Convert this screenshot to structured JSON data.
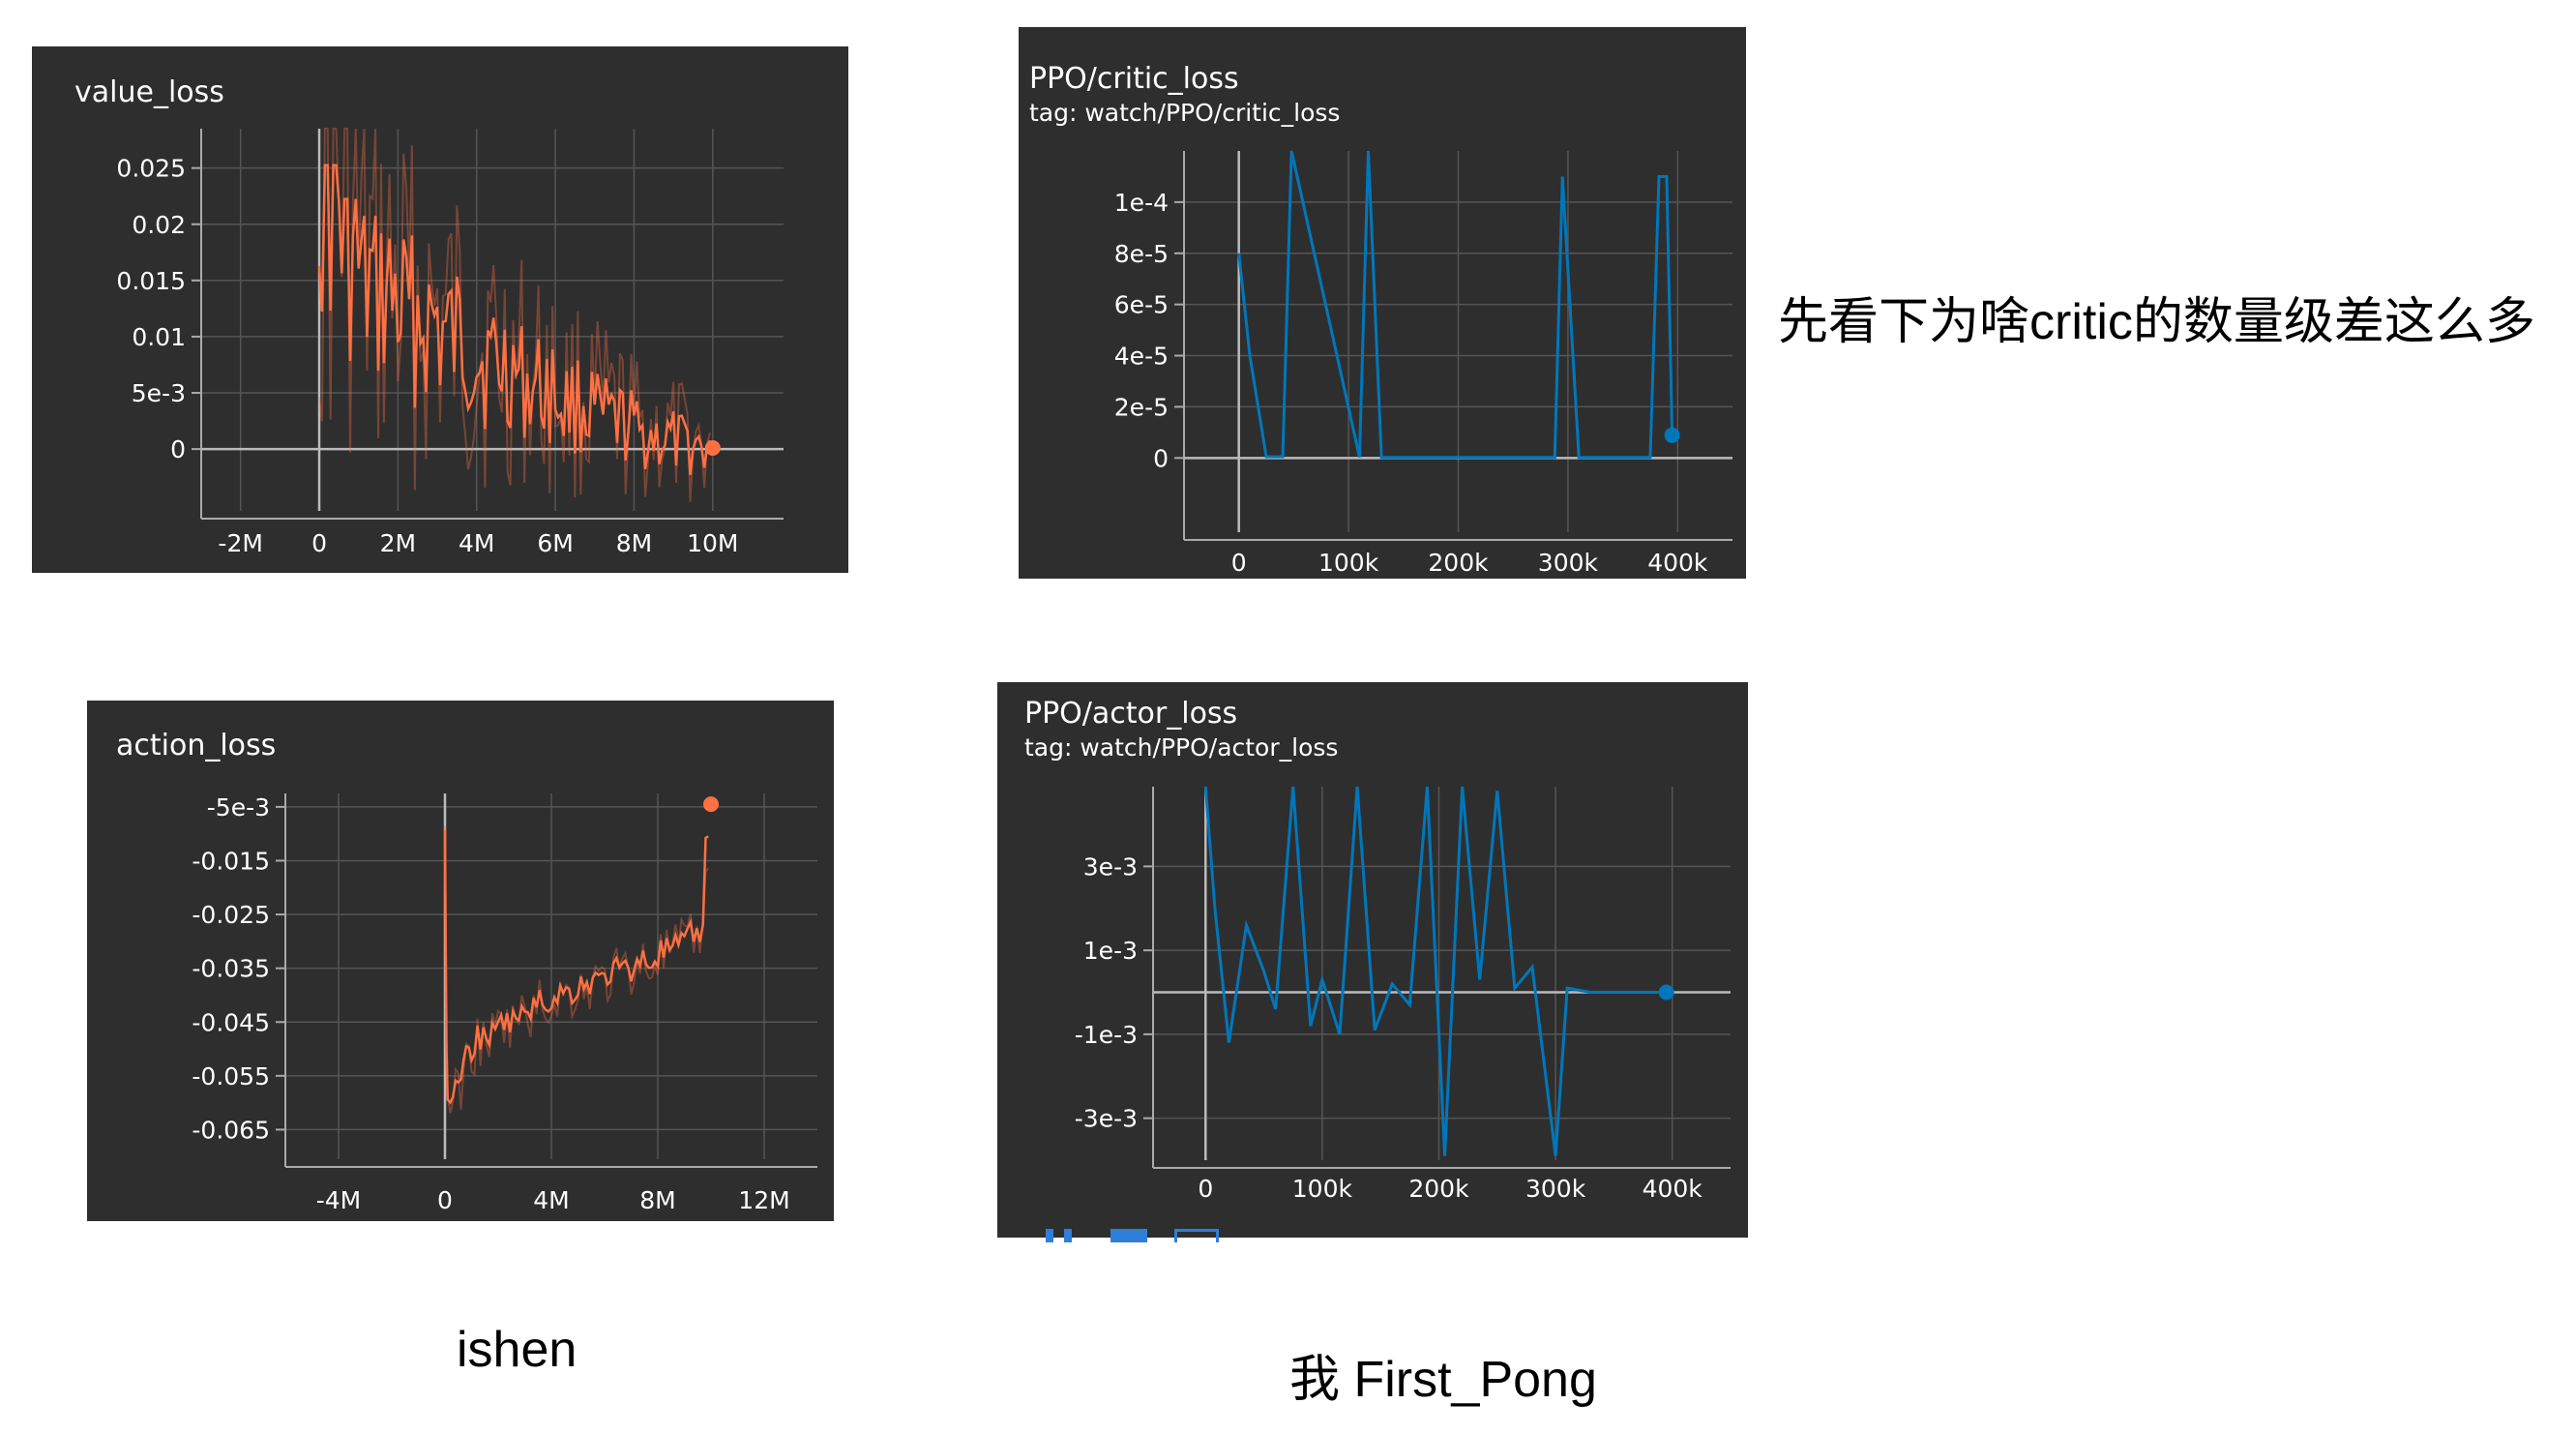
{
  "annotations": {
    "question": "先看下为啥critic的数量级差这么多",
    "left_author": "ishen",
    "right_author": "我 First_Pong"
  },
  "colors": {
    "panel_bg": "#2e2e2e",
    "orange": "#ff7043",
    "blue": "#0077bb",
    "grid": "#555555",
    "axis": "#aaaaaa"
  },
  "charts": {
    "value_loss": {
      "title": "value_loss"
    },
    "critic": {
      "title": "PPO/critic_loss",
      "tag": "tag: watch/PPO/critic_loss"
    },
    "action_loss": {
      "title": "action_loss"
    },
    "actor": {
      "title": "PPO/actor_loss",
      "tag": "tag: watch/PPO/actor_loss"
    }
  },
  "chart_data": [
    {
      "type": "line",
      "title": "value_loss",
      "xlim": [
        -3000000,
        11800000
      ],
      "ylim": [
        -0.0055,
        0.0285
      ],
      "x_ticks": [
        -2000000,
        0,
        2000000,
        4000000,
        6000000,
        8000000,
        10000000
      ],
      "x_tick_labels": [
        "-2M",
        "0",
        "2M",
        "4M",
        "6M",
        "8M",
        "10M"
      ],
      "y_ticks": [
        0.025,
        0.02,
        0.015,
        0.01,
        0.005,
        0
      ],
      "y_tick_labels": [
        "0.025",
        "0.02",
        "0.015",
        "0.01",
        "5e-3",
        "0"
      ],
      "series": [
        {
          "x": [
            0,
            500000,
            1000000,
            2000000,
            3000000,
            4000000,
            5000000,
            6000000,
            7000000,
            8000000,
            9000000,
            10000000
          ],
          "values": [
            0.028,
            0.022,
            0.016,
            0.013,
            0.011,
            0.009,
            0.007,
            0.005,
            0.0035,
            0.002,
            0.0007,
            0.0001
          ]
        }
      ],
      "grid": true
    },
    {
      "type": "line",
      "title": "PPO/critic_loss",
      "xlim": [
        -50000,
        450000
      ],
      "ylim": [
        -2.9e-05,
        0.00012
      ],
      "x_ticks": [
        0,
        100000,
        200000,
        300000,
        400000
      ],
      "x_tick_labels": [
        "0",
        "100k",
        "200k",
        "300k",
        "400k"
      ],
      "y_ticks": [
        0.0001,
        8e-05,
        6e-05,
        4e-05,
        2e-05,
        0
      ],
      "y_tick_labels": [
        "1e-4",
        "8e-5",
        "6e-5",
        "4e-5",
        "2e-5",
        "0"
      ],
      "series": [
        {
          "x": [
            0,
            10000,
            25000,
            40000,
            48000,
            110000,
            118000,
            130000,
            288000,
            295000,
            310000,
            375000,
            383000,
            390000,
            395000
          ],
          "values": [
            8e-05,
            4e-05,
            5e-07,
            5e-07,
            0.00012,
            3e-07,
            0.00012,
            2e-07,
            2e-07,
            0.00011,
            2e-07,
            2e-07,
            0.00011,
            0.00011,
            8.9e-06
          ]
        }
      ],
      "grid": true
    },
    {
      "type": "line",
      "title": "action_loss",
      "xlim": [
        -6000000,
        14000000
      ],
      "ylim": [
        -0.0705,
        -0.0025
      ],
      "x_ticks": [
        -4000000,
        0,
        4000000,
        8000000,
        12000000
      ],
      "x_tick_labels": [
        "-4M",
        "0",
        "4M",
        "8M",
        "12M"
      ],
      "y_ticks": [
        -0.005,
        -0.015,
        -0.025,
        -0.035,
        -0.045,
        -0.055,
        -0.065
      ],
      "y_tick_labels": [
        "-5e-3",
        "-0.015",
        "-0.025",
        "-0.035",
        "-0.045",
        "-0.055",
        "-0.065"
      ],
      "series": [
        {
          "x": [
            0,
            100000,
            500000,
            1000000,
            2000000,
            3000000,
            4000000,
            5000000,
            6000000,
            7000000,
            8000000,
            9000000,
            9700000,
            10000000
          ],
          "values": [
            -0.01,
            -0.06,
            -0.058,
            -0.05,
            -0.047,
            -0.044,
            -0.041,
            -0.039,
            -0.037,
            -0.035,
            -0.033,
            -0.031,
            -0.028,
            -0.0045
          ]
        }
      ],
      "grid": true
    },
    {
      "type": "line",
      "title": "PPO/actor_loss",
      "xlim": [
        -45000,
        450000
      ],
      "ylim": [
        -0.004,
        0.0049
      ],
      "x_ticks": [
        0,
        100000,
        200000,
        300000,
        400000
      ],
      "x_tick_labels": [
        "0",
        "100k",
        "200k",
        "300k",
        "400k"
      ],
      "y_ticks": [
        0.003,
        0.001,
        -0.001,
        -0.003
      ],
      "y_tick_labels": [
        "3e-3",
        "1e-3",
        "-1e-3",
        "-3e-3"
      ],
      "series": [
        {
          "x": [
            0,
            8000,
            20000,
            35000,
            50000,
            60000,
            75000,
            90000,
            100000,
            115000,
            130000,
            145000,
            160000,
            175000,
            190000,
            205000,
            220000,
            235000,
            250000,
            265000,
            280000,
            300000,
            310000,
            330000,
            360000,
            395000
          ],
          "values": [
            0.0049,
            0.002,
            -0.0012,
            0.0016,
            0.0005,
            -0.0004,
            0.0049,
            -0.0008,
            0.0003,
            -0.001,
            0.0049,
            -0.0009,
            0.0002,
            -0.0003,
            0.0049,
            -0.0039,
            0.0049,
            0.0003,
            0.0048,
            0.0001,
            0.0006,
            -0.0039,
            0.0001,
            0.0,
            0.0,
            0.0
          ]
        }
      ],
      "grid": true
    }
  ]
}
